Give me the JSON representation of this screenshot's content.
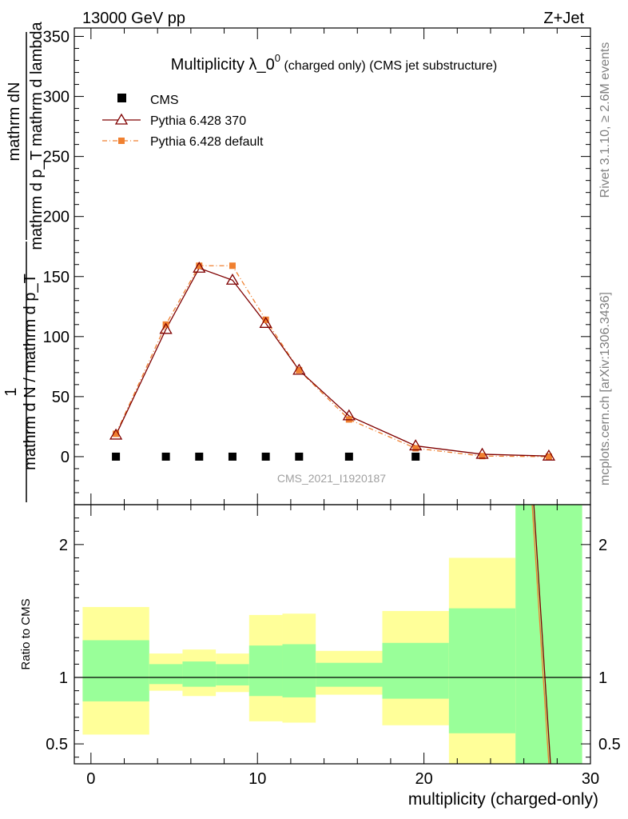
{
  "header": {
    "energy": "13000 GeV pp",
    "process": "Z+Jet",
    "plot_title": "Multiplicity λ_0",
    "plot_title_sup": "0",
    "plot_title_suffix": " (charged only) (CMS jet substructure)",
    "analysis_id": "CMS_2021_I1920187"
  },
  "side": {
    "rivet": "Rivet 3.1.10, ≥ 2.6M events",
    "mcplots": "mcplots.cern.ch [arXiv:1306.3436]"
  },
  "axes": {
    "ylabel_top_num": "mathrm dN",
    "ylabel_top_den": "mathrm d p_T mathrm d lambda",
    "ylabel_bottom_num": "1",
    "ylabel_bottom_den": "mathrm d N / mathrm d p_T",
    "ratio_ylabel": "Ratio to CMS",
    "xlabel": "multiplicity (charged-only)"
  },
  "legend": {
    "cms": "CMS",
    "p370": "Pythia 6.428 370",
    "pdef": "Pythia 6.428 default"
  },
  "chart_data": [
    {
      "type": "scatter",
      "panel": "main",
      "xlim": [
        -1,
        30
      ],
      "ylim": [
        -40,
        357
      ],
      "yticks": [
        0,
        50,
        100,
        150,
        200,
        250,
        300,
        350
      ],
      "series": [
        {
          "name": "CMS",
          "color": "#000000",
          "marker": "square",
          "x": [
            1.5,
            4.5,
            6.5,
            8.5,
            10.5,
            12.5,
            15.5,
            19.5
          ],
          "y": [
            0,
            0,
            0,
            0,
            0,
            0,
            0,
            0
          ]
        },
        {
          "name": "Pythia 6.428 370",
          "color": "#7f0000",
          "marker": "triangle-open",
          "x": [
            1.5,
            4.5,
            6.5,
            8.5,
            10.5,
            12.5,
            15.5,
            19.5,
            23.5,
            27.5
          ],
          "y": [
            18,
            106,
            157,
            147,
            111,
            72,
            34,
            9,
            2,
            0.5
          ]
        },
        {
          "name": "Pythia 6.428 default",
          "color": "#f08030",
          "marker": "square-filled",
          "x": [
            1.5,
            4.5,
            6.5,
            8.5,
            10.5,
            12.5,
            15.5,
            19.5,
            23.5,
            27.5
          ],
          "y": [
            19,
            110,
            159,
            159,
            114,
            72,
            31,
            7,
            0.5,
            0
          ]
        }
      ]
    },
    {
      "type": "area",
      "panel": "ratio",
      "ylabel": "Ratio to CMS",
      "xlabel": "multiplicity (charged-only)",
      "xlim": [
        -1,
        30
      ],
      "ylim": [
        0.35,
        2.3
      ],
      "xticks": [
        0,
        10,
        20,
        30
      ],
      "yticks": [
        0.5,
        1,
        2
      ],
      "bins": [
        {
          "x0": -0.5,
          "x1": 3.5,
          "yellow": [
            0.57,
            1.53
          ],
          "green": [
            0.82,
            1.28
          ]
        },
        {
          "x0": 3.5,
          "x1": 5.5,
          "yellow": [
            0.9,
            1.18
          ],
          "green": [
            0.95,
            1.1
          ]
        },
        {
          "x0": 5.5,
          "x1": 7.5,
          "yellow": [
            0.86,
            1.21
          ],
          "green": [
            0.93,
            1.12
          ]
        },
        {
          "x0": 7.5,
          "x1": 9.5,
          "yellow": [
            0.89,
            1.18
          ],
          "green": [
            0.94,
            1.1
          ]
        },
        {
          "x0": 9.5,
          "x1": 11.5,
          "yellow": [
            0.67,
            1.47
          ],
          "green": [
            0.86,
            1.24
          ]
        },
        {
          "x0": 11.5,
          "x1": 13.5,
          "yellow": [
            0.66,
            1.48
          ],
          "green": [
            0.85,
            1.25
          ]
        },
        {
          "x0": 13.5,
          "x1": 17.5,
          "yellow": [
            0.87,
            1.2
          ],
          "green": [
            0.93,
            1.11
          ]
        },
        {
          "x0": 17.5,
          "x1": 21.5,
          "yellow": [
            0.64,
            1.5
          ],
          "green": [
            0.84,
            1.26
          ]
        },
        {
          "x0": 21.5,
          "x1": 25.5,
          "yellow": [
            0.35,
            1.9
          ],
          "green": [
            0.58,
            1.52
          ]
        },
        {
          "x0": 25.5,
          "x1": 29.5,
          "yellow": [
            0.35,
            2.3
          ],
          "green": [
            0.35,
            2.3
          ]
        }
      ],
      "reference_line": 1,
      "series": [
        {
          "name": "Pythia 6.428 370",
          "color": "#7f0000",
          "x": [
            26.6,
            27.6
          ],
          "y": [
            2.3,
            0.35
          ]
        },
        {
          "name": "Pythia 6.428 default",
          "color": "#f08030",
          "x": [
            26.5,
            27.5
          ],
          "y": [
            2.3,
            0.35
          ]
        }
      ]
    }
  ]
}
